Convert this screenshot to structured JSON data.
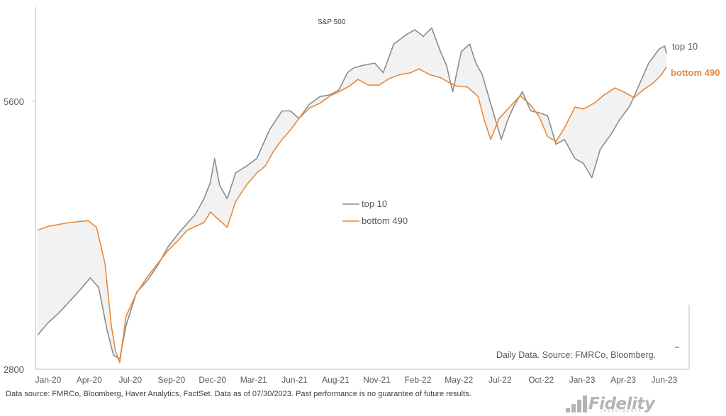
{
  "chart_data": {
    "type": "line",
    "annotation": "S&P 500",
    "y_ticks": [
      "5600",
      "2800"
    ],
    "x_ticks": [
      "Jan-20",
      "Apr-20",
      "Jul-20",
      "Sep-20",
      "Dec-20",
      "Mar-21",
      "Jun-21",
      "Aug-21",
      "Nov-21",
      "Feb-22",
      "May-22",
      "Jul-22",
      "Oct-22",
      "Jan-23",
      "Apr-23",
      "Jun-23"
    ],
    "fill_between": true,
    "legend": {
      "position": "center",
      "entries": [
        "top 10",
        "bottom 490"
      ]
    },
    "series": [
      {
        "name": "top 10",
        "end_label": "top 10",
        "color": "#8c8c8c",
        "points": [
          [
            0.0,
            3150
          ],
          [
            0.25,
            3280
          ],
          [
            0.5,
            3380
          ],
          [
            0.75,
            3500
          ],
          [
            1.0,
            3620
          ],
          [
            1.25,
            3750
          ],
          [
            1.45,
            3650
          ],
          [
            1.65,
            3200
          ],
          [
            1.8,
            2940
          ],
          [
            1.95,
            2900
          ],
          [
            2.1,
            3250
          ],
          [
            2.35,
            3600
          ],
          [
            2.6,
            3720
          ],
          [
            2.85,
            3880
          ],
          [
            3.1,
            4080
          ],
          [
            3.35,
            4220
          ],
          [
            3.55,
            4320
          ],
          [
            3.75,
            4420
          ],
          [
            3.95,
            4580
          ],
          [
            4.1,
            4750
          ],
          [
            4.2,
            5000
          ],
          [
            4.32,
            4720
          ],
          [
            4.5,
            4580
          ],
          [
            4.7,
            4850
          ],
          [
            4.95,
            4920
          ],
          [
            5.2,
            5000
          ],
          [
            5.35,
            5150
          ],
          [
            5.5,
            5300
          ],
          [
            5.65,
            5400
          ],
          [
            5.8,
            5500
          ],
          [
            6.0,
            5500
          ],
          [
            6.2,
            5420
          ],
          [
            6.45,
            5570
          ],
          [
            6.7,
            5650
          ],
          [
            6.95,
            5670
          ],
          [
            7.15,
            5720
          ],
          [
            7.35,
            5900
          ],
          [
            7.5,
            5950
          ],
          [
            7.75,
            5980
          ],
          [
            8.0,
            6000
          ],
          [
            8.2,
            5900
          ],
          [
            8.45,
            6200
          ],
          [
            8.6,
            6250
          ],
          [
            8.75,
            6300
          ],
          [
            8.95,
            6350
          ],
          [
            9.15,
            6280
          ],
          [
            9.35,
            6370
          ],
          [
            9.55,
            6130
          ],
          [
            9.7,
            5980
          ],
          [
            9.85,
            5700
          ],
          [
            10.05,
            6120
          ],
          [
            10.25,
            6200
          ],
          [
            10.4,
            6000
          ],
          [
            10.55,
            5880
          ],
          [
            10.8,
            5500
          ],
          [
            11.0,
            5200
          ],
          [
            11.15,
            5400
          ],
          [
            11.3,
            5550
          ],
          [
            11.5,
            5700
          ],
          [
            11.7,
            5500
          ],
          [
            11.9,
            5480
          ],
          [
            12.1,
            5450
          ],
          [
            12.3,
            5150
          ],
          [
            12.5,
            5200
          ],
          [
            12.75,
            5000
          ],
          [
            12.95,
            4950
          ],
          [
            13.15,
            4800
          ],
          [
            13.35,
            5100
          ],
          [
            13.6,
            5250
          ],
          [
            13.8,
            5400
          ],
          [
            14.05,
            5550
          ],
          [
            14.25,
            5750
          ],
          [
            14.5,
            6000
          ],
          [
            14.75,
            6150
          ],
          [
            14.88,
            6180
          ],
          [
            14.92,
            6100
          ]
        ]
      },
      {
        "name": "bottom 490",
        "end_label": "bottom 490",
        "color": "#e8893a",
        "points": [
          [
            0.0,
            4250
          ],
          [
            0.25,
            4290
          ],
          [
            0.5,
            4310
          ],
          [
            0.75,
            4330
          ],
          [
            1.0,
            4340
          ],
          [
            1.2,
            4350
          ],
          [
            1.4,
            4280
          ],
          [
            1.6,
            3900
          ],
          [
            1.75,
            3250
          ],
          [
            1.85,
            2980
          ],
          [
            1.95,
            2860
          ],
          [
            2.1,
            3350
          ],
          [
            2.35,
            3590
          ],
          [
            2.6,
            3760
          ],
          [
            2.85,
            3900
          ],
          [
            3.1,
            4040
          ],
          [
            3.35,
            4150
          ],
          [
            3.55,
            4250
          ],
          [
            3.75,
            4290
          ],
          [
            3.95,
            4330
          ],
          [
            4.1,
            4440
          ],
          [
            4.3,
            4360
          ],
          [
            4.5,
            4280
          ],
          [
            4.7,
            4550
          ],
          [
            4.95,
            4720
          ],
          [
            5.2,
            4850
          ],
          [
            5.4,
            4920
          ],
          [
            5.6,
            5080
          ],
          [
            5.8,
            5200
          ],
          [
            6.0,
            5300
          ],
          [
            6.2,
            5420
          ],
          [
            6.45,
            5530
          ],
          [
            6.7,
            5580
          ],
          [
            6.95,
            5660
          ],
          [
            7.15,
            5700
          ],
          [
            7.4,
            5760
          ],
          [
            7.6,
            5830
          ],
          [
            7.85,
            5770
          ],
          [
            8.1,
            5770
          ],
          [
            8.35,
            5840
          ],
          [
            8.6,
            5880
          ],
          [
            8.85,
            5900
          ],
          [
            9.05,
            5940
          ],
          [
            9.3,
            5880
          ],
          [
            9.55,
            5850
          ],
          [
            9.75,
            5800
          ],
          [
            9.95,
            5760
          ],
          [
            10.2,
            5750
          ],
          [
            10.45,
            5650
          ],
          [
            10.6,
            5400
          ],
          [
            10.75,
            5200
          ],
          [
            10.95,
            5420
          ],
          [
            11.2,
            5540
          ],
          [
            11.45,
            5660
          ],
          [
            11.7,
            5560
          ],
          [
            11.9,
            5440
          ],
          [
            12.1,
            5230
          ],
          [
            12.3,
            5180
          ],
          [
            12.5,
            5320
          ],
          [
            12.75,
            5540
          ],
          [
            12.95,
            5520
          ],
          [
            13.2,
            5580
          ],
          [
            13.45,
            5670
          ],
          [
            13.7,
            5740
          ],
          [
            13.9,
            5700
          ],
          [
            14.15,
            5640
          ],
          [
            14.4,
            5730
          ],
          [
            14.6,
            5790
          ],
          [
            14.8,
            5880
          ],
          [
            14.92,
            5960
          ]
        ]
      }
    ]
  },
  "source_note": "Daily Data.  Source: FMRCo, Bloomberg.",
  "footnote": "Data source: FMRCo, Bloomberg, Haver Analytics, FactSet. Data as of 07/30/2023. Past performance is no guarantee of future results.",
  "logo": {
    "name": "Fidelity",
    "subtitle": "INVESTMENTS"
  }
}
